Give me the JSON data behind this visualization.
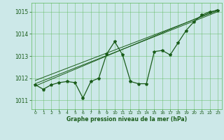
{
  "xlabel": "Graphe pression niveau de la mer (hPa)",
  "xlim": [
    -0.5,
    23.5
  ],
  "ylim": [
    1010.6,
    1015.4
  ],
  "yticks": [
    1011,
    1012,
    1013,
    1014,
    1015
  ],
  "xticks": [
    0,
    1,
    2,
    3,
    4,
    5,
    6,
    7,
    8,
    9,
    10,
    11,
    12,
    13,
    14,
    15,
    16,
    17,
    18,
    19,
    20,
    21,
    22,
    23
  ],
  "background_color": "#cce8e8",
  "grid_color": "#5cb85c",
  "line_color": "#1a5c1a",
  "main_data_x": [
    0,
    1,
    2,
    3,
    4,
    5,
    6,
    7,
    8,
    9,
    10,
    11,
    12,
    13,
    14,
    15,
    16,
    17,
    18,
    19,
    20,
    21,
    22,
    23
  ],
  "main_data_y": [
    1011.7,
    1011.5,
    1011.7,
    1011.8,
    1011.85,
    1011.8,
    1011.1,
    1011.85,
    1012.0,
    1013.1,
    1013.65,
    1013.05,
    1011.85,
    1011.75,
    1011.75,
    1013.2,
    1013.25,
    1013.05,
    1013.6,
    1014.15,
    1014.55,
    1014.85,
    1015.0,
    1015.05
  ],
  "trend1_data_x": [
    0,
    23
  ],
  "trend1_data_y": [
    1011.75,
    1015.0
  ],
  "trend2_data_x": [
    0,
    23
  ],
  "trend2_data_y": [
    1011.9,
    1015.05
  ],
  "trend3_data_x": [
    0,
    23
  ],
  "trend3_data_y": [
    1011.65,
    1015.1
  ]
}
